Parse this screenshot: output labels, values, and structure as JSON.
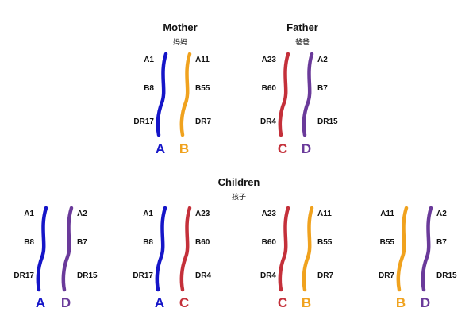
{
  "colors": {
    "A": "#1515c8",
    "B": "#f0a21e",
    "C": "#c4303a",
    "D": "#6a3a9a"
  },
  "mother": {
    "title": "Mother",
    "subtitle": "妈妈",
    "left": {
      "letter": "A",
      "genes": [
        "A1",
        "B8",
        "DR17"
      ]
    },
    "right": {
      "letter": "B",
      "genes": [
        "A11",
        "B55",
        "DR7"
      ]
    }
  },
  "father": {
    "title": "Father",
    "subtitle": "爸爸",
    "left": {
      "letter": "C",
      "genes": [
        "A23",
        "B60",
        "DR4"
      ]
    },
    "right": {
      "letter": "D",
      "genes": [
        "A2",
        "B7",
        "DR15"
      ]
    }
  },
  "children": {
    "title": "Children",
    "subtitle": "孩子",
    "items": [
      {
        "left": {
          "letter": "A",
          "genes": [
            "A1",
            "B8",
            "DR17"
          ]
        },
        "right": {
          "letter": "D",
          "genes": [
            "A2",
            "B7",
            "DR15"
          ]
        }
      },
      {
        "left": {
          "letter": "A",
          "genes": [
            "A1",
            "B8",
            "DR17"
          ]
        },
        "right": {
          "letter": "C",
          "genes": [
            "A23",
            "B60",
            "DR4"
          ]
        }
      },
      {
        "left": {
          "letter": "C",
          "genes": [
            "A23",
            "B60",
            "DR4"
          ]
        },
        "right": {
          "letter": "B",
          "genes": [
            "A11",
            "B55",
            "DR7"
          ]
        }
      },
      {
        "left": {
          "letter": "B",
          "genes": [
            "A11",
            "B55",
            "DR7"
          ]
        },
        "right": {
          "letter": "D",
          "genes": [
            "A2",
            "B7",
            "DR15"
          ]
        }
      }
    ]
  }
}
